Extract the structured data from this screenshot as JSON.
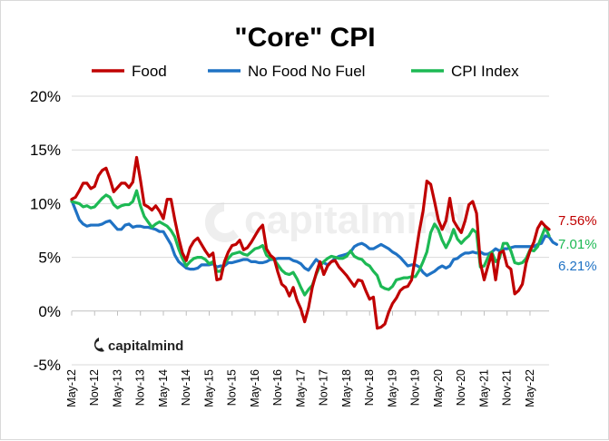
{
  "chart_data": {
    "type": "line",
    "title": "\"Core\" CPI",
    "xlabel": "",
    "ylabel": "",
    "ylim": [
      -5,
      20
    ],
    "yticks": [
      -5,
      0,
      5,
      10,
      15,
      20
    ],
    "ytick_labels": [
      "-5%",
      "0%",
      "5%",
      "10%",
      "15%",
      "20%"
    ],
    "x_tick_labels": [
      "May-12",
      "Nov-12",
      "May-13",
      "Nov-13",
      "May-14",
      "Nov-14",
      "May-15",
      "Nov-15",
      "May-16",
      "Nov-16",
      "May-17",
      "Nov-17",
      "May-18",
      "Nov-18",
      "May-19",
      "Nov-19",
      "May-20",
      "Nov-20",
      "May-21",
      "Nov-21",
      "May-22"
    ],
    "x_start": "May-12",
    "x_end": "May-22",
    "legend_position": "top",
    "grid": "horizontal",
    "series": [
      {
        "name": "Food",
        "color": "#c00000",
        "end_label": "7.56%",
        "values": [
          10.4,
          10.6,
          11.2,
          11.9,
          11.9,
          11.4,
          11.6,
          12.6,
          13.1,
          13.3,
          12.3,
          11.1,
          11.5,
          11.9,
          11.9,
          11.5,
          12.0,
          14.3,
          12.2,
          9.9,
          9.7,
          9.4,
          9.8,
          9.3,
          8.6,
          10.4,
          10.4,
          8.5,
          6.8,
          5.4,
          4.7,
          5.9,
          6.5,
          6.8,
          6.2,
          5.6,
          5.1,
          5.4,
          2.9,
          3.0,
          4.6,
          5.5,
          6.1,
          6.2,
          6.6,
          5.7,
          5.9,
          6.4,
          7.0,
          7.6,
          8.0,
          5.8,
          5.2,
          4.9,
          3.6,
          2.5,
          2.2,
          1.4,
          2.2,
          1.0,
          0.2,
          -1.0,
          0.3,
          2.2,
          3.5,
          4.6,
          3.4,
          4.2,
          4.6,
          4.7,
          4.1,
          3.7,
          3.3,
          2.8,
          2.3,
          2.9,
          2.8,
          1.9,
          1.1,
          1.3,
          -1.6,
          -1.5,
          -1.2,
          -0.1,
          0.7,
          1.2,
          1.9,
          2.2,
          2.3,
          2.9,
          5.1,
          7.4,
          9.3,
          12.1,
          11.8,
          10.2,
          8.5,
          7.6,
          8.4,
          10.5,
          8.4,
          7.8,
          7.3,
          8.4,
          9.9,
          10.2,
          9.1,
          4.5,
          2.9,
          4.2,
          5.3,
          2.9,
          5.4,
          5.6,
          4.2,
          3.9,
          1.6,
          1.9,
          2.5,
          4.5,
          5.6,
          6.4,
          7.7,
          8.3,
          7.9,
          7.6
        ]
      },
      {
        "name": "No Food No Fuel",
        "color": "#1f72c4",
        "end_label": "6.21%",
        "values": [
          10.3,
          9.4,
          8.5,
          8.1,
          7.9,
          8.0,
          8.0,
          8.0,
          8.1,
          8.3,
          8.4,
          8.0,
          7.6,
          7.6,
          8.0,
          8.1,
          7.8,
          7.9,
          7.9,
          7.8,
          7.8,
          7.7,
          7.6,
          7.4,
          7.4,
          6.8,
          6.2,
          5.2,
          4.6,
          4.3,
          4.0,
          3.9,
          3.9,
          4.0,
          4.3,
          4.3,
          4.3,
          4.4,
          4.1,
          4.2,
          4.2,
          4.5,
          4.5,
          4.6,
          4.7,
          4.8,
          4.8,
          4.6,
          4.6,
          4.5,
          4.5,
          4.6,
          4.8,
          4.8,
          4.9,
          4.9,
          4.9,
          4.9,
          4.7,
          4.6,
          4.4,
          4.0,
          3.8,
          4.3,
          4.8,
          4.5,
          4.5,
          4.3,
          4.6,
          4.9,
          5.1,
          5.2,
          5.3,
          5.5,
          6.0,
          6.2,
          6.3,
          6.1,
          5.8,
          5.8,
          6.0,
          6.2,
          6.0,
          5.8,
          5.5,
          5.3,
          5.0,
          4.6,
          4.2,
          4.3,
          4.3,
          4.1,
          3.6,
          3.3,
          3.5,
          3.7,
          4.0,
          4.2,
          4.0,
          4.2,
          4.8,
          4.9,
          5.2,
          5.4,
          5.4,
          5.5,
          5.4,
          5.5,
          5.3,
          5.3,
          5.5,
          5.8,
          5.6,
          5.8,
          5.8,
          5.9,
          6.0,
          6.0,
          6.0,
          6.0,
          6.0,
          6.0,
          6.2,
          6.3,
          7.0,
          6.9,
          6.4,
          6.2
        ]
      },
      {
        "name": "CPI Index",
        "color": "#1db954",
        "end_label": "7.01%",
        "values": [
          10.2,
          10.1,
          10.0,
          9.7,
          9.8,
          9.6,
          9.7,
          10.1,
          10.5,
          10.8,
          10.6,
          9.9,
          9.6,
          9.8,
          9.9,
          9.9,
          10.2,
          11.2,
          9.8,
          8.8,
          8.3,
          7.8,
          8.1,
          8.3,
          8.1,
          7.9,
          7.5,
          6.9,
          5.8,
          4.9,
          4.2,
          4.6,
          4.9,
          5.0,
          5.0,
          4.8,
          4.4,
          4.6,
          3.7,
          3.7,
          4.4,
          4.9,
          5.3,
          5.4,
          5.5,
          5.3,
          5.2,
          5.5,
          5.8,
          5.9,
          6.1,
          5.2,
          4.9,
          4.8,
          4.3,
          3.8,
          3.5,
          3.4,
          3.6,
          3.0,
          2.2,
          1.5,
          2.0,
          2.4,
          3.4,
          4.2,
          4.6,
          4.9,
          5.1,
          5.0,
          4.9,
          4.9,
          5.1,
          5.6,
          5.1,
          4.9,
          4.8,
          4.4,
          4.2,
          3.7,
          3.3,
          2.3,
          2.1,
          2.0,
          2.3,
          2.9,
          3.0,
          3.1,
          3.1,
          3.2,
          3.2,
          3.8,
          4.6,
          5.5,
          7.3,
          8.1,
          7.6,
          6.6,
          5.9,
          6.6,
          7.6,
          6.7,
          6.3,
          6.7,
          7.0,
          7.6,
          7.3,
          4.1,
          4.2,
          5.0,
          5.5,
          4.6,
          4.9,
          6.3,
          6.3,
          5.6,
          4.5,
          4.4,
          4.5,
          4.9,
          5.7,
          5.6,
          6.0,
          6.9,
          7.8,
          7.0
        ]
      }
    ]
  },
  "watermark": {
    "main_text": "capitalmind",
    "logo_text": "capitalmind"
  }
}
